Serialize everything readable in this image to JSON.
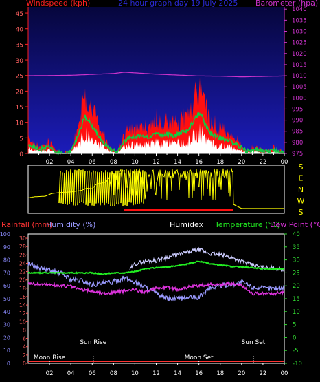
{
  "title": "24 hour graph day  19 July 2025",
  "colors": {
    "bg": "#000000",
    "wind_grad_top": "#06063c",
    "wind_grad_bottom": "#1c1cba",
    "wind_label": "#ff2020",
    "baro_label": "#cc33cc",
    "title": "#2a2ad8",
    "gust": "#ff1010",
    "avg": "#11cc44",
    "white": "#ffffff",
    "dir": "#ffff00",
    "dir_frame": "#ffffff",
    "rain": "#ff3333",
    "humidity": "#9a9aff",
    "humidex": "#ccccff",
    "temp": "#22ee22",
    "dew": "#dd33dd",
    "axis_text": "#ffffff",
    "left_tick": "#ff6060",
    "hum_tick": "#8c8cff",
    "temp_tick": "#33dd33"
  },
  "wind_panel": {
    "ylabel": "Windspeed (kph)",
    "ylabel2": "Barometer (hpa)",
    "yticks": [
      "0",
      "5",
      "10",
      "15",
      "20",
      "25",
      "30",
      "35",
      "40",
      "45"
    ],
    "y2ticks": [
      "975",
      "980",
      "985",
      "990",
      "995",
      "1000",
      "1005",
      "1010",
      "1015",
      "1020",
      "1025",
      "1030",
      "1035",
      "1040"
    ],
    "xticks": [
      "02",
      "04",
      "06",
      "08",
      "10",
      "12",
      "14",
      "16",
      "18",
      "20",
      "22",
      "00"
    ]
  },
  "dir_panel": {
    "letters": [
      "S",
      "E",
      "N",
      "W",
      "S"
    ]
  },
  "temp_panel": {
    "label_rain": "Rainfall (mm)",
    "label_hum": "Humidity (%)",
    "label_humidex": "Humidex",
    "label_temp": "Temperature (°C)",
    "label_dew": "Dew Point (°C)",
    "rain_ticks": [
      "0",
      "2",
      "4",
      "6",
      "8",
      "10",
      "12",
      "14",
      "16",
      "18",
      "20",
      "22",
      "24",
      "26",
      "28",
      "30"
    ],
    "hum_ticks": [
      "0",
      "10",
      "20",
      "30",
      "40",
      "50",
      "60",
      "70",
      "80",
      "90",
      "100"
    ],
    "temp_ticks": [
      "-10",
      "-5",
      "0",
      "5",
      "10",
      "15",
      "20",
      "25",
      "30",
      "35",
      "40"
    ],
    "xticks": [
      "02",
      "04",
      "06",
      "08",
      "10",
      "12",
      "14",
      "16",
      "18",
      "20",
      "22",
      "00"
    ],
    "events": [
      {
        "label": "Moon Rise",
        "x_hour": 2.0
      },
      {
        "label": "Sun Rise",
        "x_hour": 6.1
      },
      {
        "label": "Moon Set",
        "x_hour": 16.0
      },
      {
        "label": "Sun Set",
        "x_hour": 21.1
      }
    ]
  },
  "chart_data": [
    {
      "type": "area",
      "title": "24 hour graph day  19 July 2025",
      "xlabel": "",
      "ylabel": "Windspeed (kph)",
      "y2label": "Barometer (hpa)",
      "xlim": [
        0,
        24
      ],
      "ylim": [
        0,
        47
      ],
      "y2lim": [
        975,
        1041
      ],
      "series": [
        {
          "name": "Windspeed (kph)",
          "x": [
            0,
            1,
            2,
            2.5,
            3,
            3.5,
            4,
            4.5,
            5,
            5.3,
            5.6,
            6,
            6.5,
            7,
            7.5,
            8,
            8.5,
            9,
            9.5,
            10,
            10.5,
            11,
            11.5,
            12,
            12.5,
            13,
            13.5,
            14,
            14.5,
            15,
            15.5,
            16,
            16.3,
            16.6,
            17,
            17.5,
            18,
            18.5,
            19,
            19.5,
            20,
            20.5,
            21,
            21.5,
            22,
            22.5,
            23,
            23.5,
            24
          ],
          "y": [
            5,
            2,
            4,
            1,
            0,
            0,
            1,
            7,
            14,
            19,
            18,
            14,
            10,
            6,
            3,
            1,
            2,
            6,
            9,
            8,
            9,
            8,
            9,
            11,
            9,
            10,
            9,
            10,
            11,
            12,
            17,
            21,
            19,
            15,
            11,
            9,
            8,
            7,
            6,
            5,
            3,
            1,
            2,
            2,
            1,
            1,
            2,
            1,
            0
          ]
        },
        {
          "name": "Barometer (hpa)",
          "x": [
            0,
            2,
            4,
            6,
            8,
            9,
            10,
            12,
            14,
            16,
            18,
            20,
            22,
            24
          ],
          "y": [
            1010.0,
            1010.1,
            1010.2,
            1010.6,
            1011.0,
            1011.6,
            1011.3,
            1010.7,
            1010.3,
            1009.9,
            1009.8,
            1009.5,
            1009.7,
            1009.9
          ]
        }
      ]
    },
    {
      "type": "line",
      "title": "",
      "xlabel": "",
      "ylabel": "",
      "categories": [
        "S",
        "E",
        "N",
        "W",
        "S"
      ],
      "series": [
        {
          "name": "",
          "x": [
            0,
            0.6,
            1.6,
            2.2,
            3,
            4,
            5,
            5.5,
            6,
            6.4,
            7,
            7.3,
            7.6,
            7.9,
            8.5,
            9,
            10,
            11,
            12,
            13,
            14,
            15,
            16,
            17,
            18,
            19,
            19.2,
            20,
            22,
            24
          ],
          "y": [
            1.2,
            1.3,
            1.35,
            1.6,
            1.7,
            1.75,
            1.9,
            2.1,
            2.05,
            2.5,
            2.6,
            2.7,
            3.1,
            1.4,
            3.3,
            3.0,
            2.8,
            3.2,
            2.7,
            3.1,
            2.5,
            3.3,
            2.4,
            3.0,
            2.6,
            2.3,
            0.6,
            0.2,
            0.2,
            0.2
          ]
        }
      ]
    },
    {
      "type": "line",
      "title": "",
      "xlabel": "",
      "ylabel": "Temperature (°C)",
      "xlim": [
        0,
        24
      ],
      "ylim": [
        -10,
        40
      ],
      "series": [
        {
          "name": "Humidex",
          "x": [
            9.5,
            10,
            11,
            12,
            13,
            14,
            15,
            16,
            17,
            18,
            19,
            20,
            21,
            22,
            23,
            24
          ],
          "y": [
            26,
            28.5,
            29.5,
            29.8,
            31,
            32,
            33,
            34,
            32.5,
            32,
            31,
            29.5,
            28,
            27,
            27,
            26
          ]
        },
        {
          "name": "Temperature (°C)",
          "x": [
            0,
            1,
            2,
            3,
            4,
            5,
            6,
            7,
            8,
            9,
            10,
            11,
            12,
            13,
            14,
            15,
            16,
            17,
            18,
            19,
            20,
            21,
            22,
            23,
            24
          ],
          "y": [
            25,
            25,
            25,
            25,
            25,
            25,
            25,
            24.5,
            25,
            25,
            25.5,
            26.5,
            27,
            27.2,
            27.8,
            28.5,
            29.5,
            28.5,
            28,
            27.5,
            27.2,
            27,
            26.5,
            26.5,
            26.5
          ]
        },
        {
          "name": "Dew Point (°C)",
          "x": [
            0,
            1,
            2,
            3,
            4,
            5,
            6,
            7,
            8,
            9,
            10,
            11,
            12,
            13,
            14,
            15,
            16,
            17,
            18,
            19,
            20,
            21,
            22,
            23,
            24
          ],
          "y": [
            21,
            20.7,
            20.5,
            20,
            19.8,
            18.5,
            18,
            17,
            17.5,
            18,
            18.5,
            17.5,
            19,
            19.5,
            18.5,
            19.5,
            20,
            20.5,
            20.5,
            21,
            20.2,
            17,
            17,
            17,
            17.5
          ]
        }
      ]
    },
    {
      "type": "line",
      "title": "",
      "xlabel": "",
      "ylabel": "Humidity (%)",
      "xlim": [
        0,
        24
      ],
      "ylim": [
        0,
        100
      ],
      "series": [
        {
          "name": "Humidity (%)",
          "x": [
            0,
            1,
            2,
            3,
            4,
            5,
            6,
            7,
            8,
            9,
            10,
            11,
            12,
            13,
            14,
            15,
            16,
            17,
            18,
            19,
            20,
            21,
            22,
            23,
            24
          ],
          "y": [
            77,
            74,
            72,
            70,
            65,
            64,
            61,
            62,
            63,
            66,
            63,
            59,
            54,
            50,
            50,
            51,
            51,
            58,
            60,
            61,
            63,
            59,
            58,
            58,
            59
          ]
        },
        {
          "name": "Rainfall (mm)",
          "x": [
            0,
            24
          ],
          "y": [
            0,
            0
          ]
        }
      ]
    }
  ]
}
